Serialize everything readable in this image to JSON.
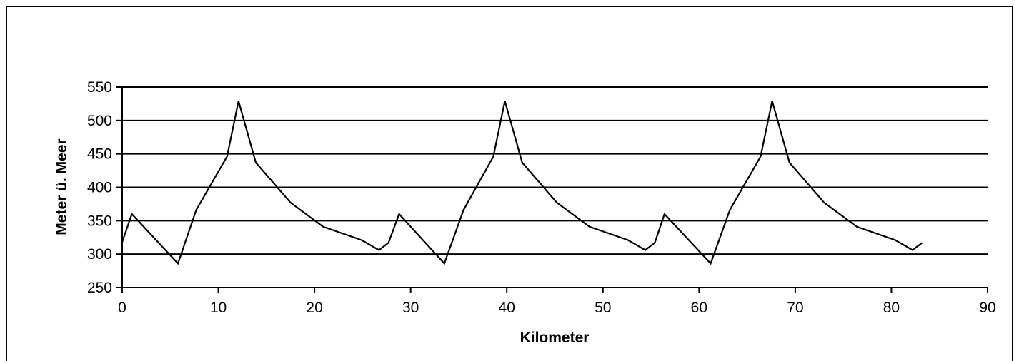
{
  "chart_data": {
    "type": "line",
    "xlabel": "Kilometer",
    "ylabel": "Meter ü. Meer",
    "xlim": [
      0,
      90
    ],
    "ylim": [
      250,
      550
    ],
    "xticks": [
      0,
      10,
      20,
      30,
      40,
      50,
      60,
      70,
      80,
      90
    ],
    "yticks": [
      250,
      300,
      350,
      400,
      450,
      500,
      550
    ],
    "grid": "horizontal",
    "line_color": "#000000",
    "series": [
      {
        "x": [
          0,
          1,
          5.8,
          7.7,
          10.9,
          12.1,
          13.9,
          17.5,
          20.9,
          24.9,
          26.7,
          27.7,
          28.8,
          33.5,
          35.5,
          38.6,
          39.8,
          41.6,
          45.2,
          48.6,
          52.6,
          54.4,
          55.4,
          56.4,
          61.2,
          63.2,
          66.4,
          67.6,
          69.4,
          73.0,
          76.4,
          80.4,
          82.2,
          83.2
        ],
        "y": [
          318,
          360,
          286,
          366,
          446,
          529,
          437,
          377,
          341,
          321,
          306,
          317,
          360,
          286,
          366,
          446,
          529,
          437,
          377,
          341,
          321,
          306,
          317,
          360,
          286,
          366,
          446,
          529,
          437,
          377,
          341,
          321,
          306,
          317
        ]
      }
    ]
  }
}
